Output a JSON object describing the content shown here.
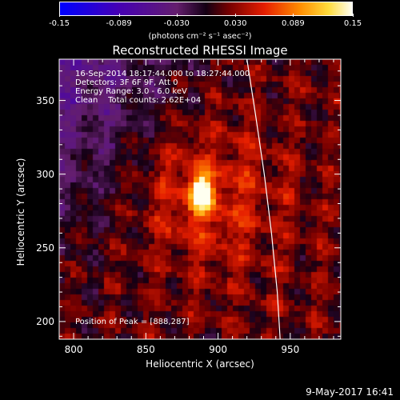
{
  "colorbar": {
    "tick_labels": [
      "-0.15",
      "-0.089",
      "-0.030",
      "0.030",
      "0.089",
      "0.15"
    ],
    "tick_values": [
      -0.15,
      -0.089,
      -0.03,
      0.03,
      0.089,
      0.15
    ],
    "range": [
      -0.15,
      0.15
    ],
    "units_label": "(photons cm⁻² s⁻¹ asec⁻²)"
  },
  "chart_data": {
    "type": "heatmap",
    "title": "Reconstructed RHESSI Image",
    "xlabel": "Heliocentric X (arcsec)",
    "ylabel": "Heliocentric Y (arcsec)",
    "xlim": [
      790,
      985
    ],
    "ylim": [
      188,
      378
    ],
    "x_ticks": [
      800,
      850,
      900,
      950
    ],
    "y_ticks": [
      200,
      250,
      300,
      350
    ],
    "peak": [
      888,
      287
    ],
    "limb_curve": [
      [
        920,
        378
      ],
      [
        926,
        340
      ],
      [
        932,
        300
      ],
      [
        937,
        260
      ],
      [
        941,
        220
      ],
      [
        943,
        188
      ]
    ],
    "info_lines": [
      "16-Sep-2014 18:17:44.000 to 18:27:44.000",
      "Detectors: 3F 6F 9F, Att 0",
      "Energy Range: 3.0 - 6.0 keV",
      "Clean    Total counts: 2.62E+04"
    ],
    "peak_label": "Position of Peak = [888,287]"
  },
  "footer": {
    "date": "9-May-2017 16:41"
  },
  "colors": {
    "background": "#000000",
    "foreground": "#ffffff"
  }
}
